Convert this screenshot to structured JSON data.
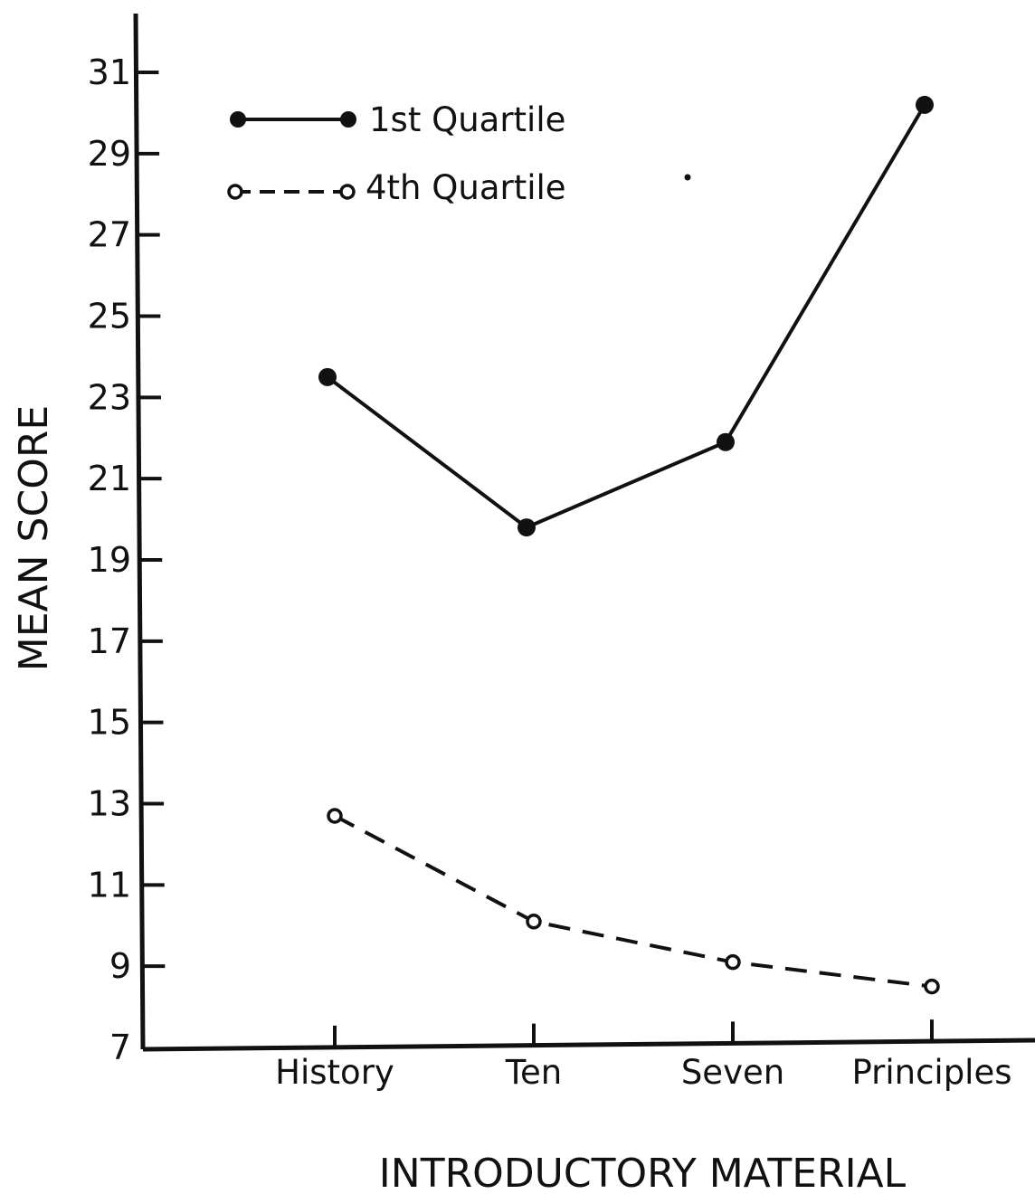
{
  "chart_data": {
    "type": "line",
    "title": "",
    "xlabel": "INTRODUCTORY MATERIAL",
    "ylabel": "MEAN SCORE",
    "categories": [
      "History",
      "Ten",
      "Seven",
      "Principles"
    ],
    "ylim": [
      7,
      31
    ],
    "yticks": [
      "7",
      "9",
      "11",
      "13",
      "15",
      "17",
      "19",
      "21",
      "23",
      "25",
      "27",
      "29",
      "31"
    ],
    "grid": false,
    "legend_position": "top-left",
    "series": [
      {
        "name": "1st Quartile",
        "values": [
          23.5,
          19.8,
          21.9,
          30.2
        ],
        "marker": "filled-circle",
        "line": "solid",
        "color": "#111111"
      },
      {
        "name": "4th Quartile",
        "values": [
          12.7,
          10.1,
          9.1,
          8.5
        ],
        "marker": "open-circle",
        "line": "dashed",
        "color": "#111111"
      }
    ]
  }
}
